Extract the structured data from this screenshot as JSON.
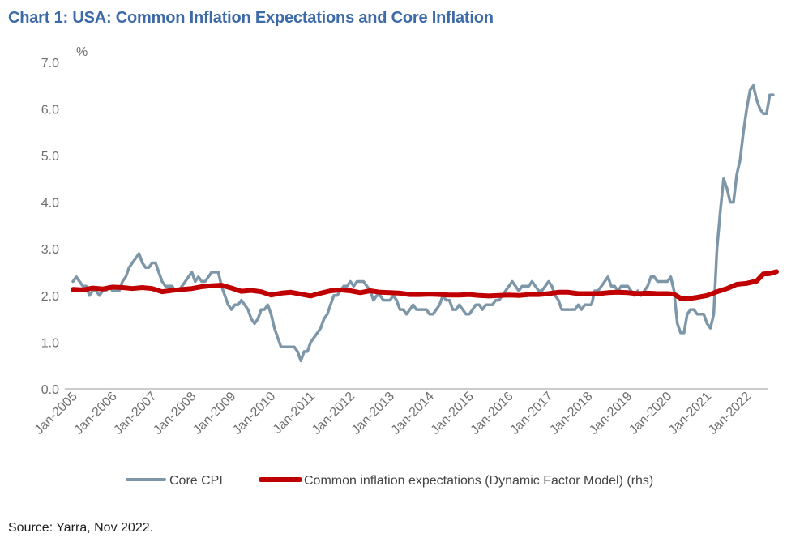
{
  "title": "Chart 1: USA: Common Inflation Expectations and Core Inflation",
  "source": "Source: Yarra, Nov 2022.",
  "colors": {
    "title": "#3d6aa8",
    "core_cpi": "#7d96a8",
    "expectations": "#c00000"
  },
  "chart_data": {
    "type": "line",
    "y_unit": "%",
    "ylim": [
      0,
      7
    ],
    "y_ticks": [
      "0.0",
      "1.0",
      "2.0",
      "3.0",
      "4.0",
      "5.0",
      "6.0",
      "7.0"
    ],
    "x_ticks": [
      "Jan-2005",
      "Jan-2006",
      "Jan-2007",
      "Jan-2008",
      "Jan-2009",
      "Jan-2010",
      "Jan-2011",
      "Jan-2012",
      "Jan-2013",
      "Jan-2014",
      "Jan-2015",
      "Jan-2016",
      "Jan-2017",
      "Jan-2018",
      "Jan-2019",
      "Jan-2020",
      "Jan-2021",
      "Jan-2022"
    ],
    "grid": false,
    "legend_position": "bottom",
    "series": [
      {
        "name": "Core CPI",
        "color": "#7d96a8",
        "points": [
          [
            "2005-01",
            2.3
          ],
          [
            "2005-02",
            2.4
          ],
          [
            "2005-03",
            2.3
          ],
          [
            "2005-04",
            2.2
          ],
          [
            "2005-05",
            2.2
          ],
          [
            "2005-06",
            2.0
          ],
          [
            "2005-07",
            2.1
          ],
          [
            "2005-08",
            2.1
          ],
          [
            "2005-09",
            2.0
          ],
          [
            "2005-10",
            2.1
          ],
          [
            "2005-11",
            2.1
          ],
          [
            "2005-12",
            2.2
          ],
          [
            "2006-01",
            2.1
          ],
          [
            "2006-02",
            2.1
          ],
          [
            "2006-03",
            2.1
          ],
          [
            "2006-04",
            2.3
          ],
          [
            "2006-05",
            2.4
          ],
          [
            "2006-06",
            2.6
          ],
          [
            "2006-07",
            2.7
          ],
          [
            "2006-08",
            2.8
          ],
          [
            "2006-09",
            2.9
          ],
          [
            "2006-10",
            2.7
          ],
          [
            "2006-11",
            2.6
          ],
          [
            "2006-12",
            2.6
          ],
          [
            "2007-01",
            2.7
          ],
          [
            "2007-02",
            2.7
          ],
          [
            "2007-03",
            2.5
          ],
          [
            "2007-04",
            2.3
          ],
          [
            "2007-05",
            2.2
          ],
          [
            "2007-06",
            2.2
          ],
          [
            "2007-07",
            2.2
          ],
          [
            "2007-08",
            2.1
          ],
          [
            "2007-09",
            2.1
          ],
          [
            "2007-10",
            2.2
          ],
          [
            "2007-11",
            2.3
          ],
          [
            "2007-12",
            2.4
          ],
          [
            "2008-01",
            2.5
          ],
          [
            "2008-02",
            2.3
          ],
          [
            "2008-03",
            2.4
          ],
          [
            "2008-04",
            2.3
          ],
          [
            "2008-05",
            2.3
          ],
          [
            "2008-06",
            2.4
          ],
          [
            "2008-07",
            2.5
          ],
          [
            "2008-08",
            2.5
          ],
          [
            "2008-09",
            2.5
          ],
          [
            "2008-10",
            2.2
          ],
          [
            "2008-11",
            2.0
          ],
          [
            "2008-12",
            1.8
          ],
          [
            "2009-01",
            1.7
          ],
          [
            "2009-02",
            1.8
          ],
          [
            "2009-03",
            1.8
          ],
          [
            "2009-04",
            1.9
          ],
          [
            "2009-05",
            1.8
          ],
          [
            "2009-06",
            1.7
          ],
          [
            "2009-07",
            1.5
          ],
          [
            "2009-08",
            1.4
          ],
          [
            "2009-09",
            1.5
          ],
          [
            "2009-10",
            1.7
          ],
          [
            "2009-11",
            1.7
          ],
          [
            "2009-12",
            1.8
          ],
          [
            "2010-01",
            1.6
          ],
          [
            "2010-02",
            1.3
          ],
          [
            "2010-03",
            1.1
          ],
          [
            "2010-04",
            0.9
          ],
          [
            "2010-05",
            0.9
          ],
          [
            "2010-06",
            0.9
          ],
          [
            "2010-07",
            0.9
          ],
          [
            "2010-08",
            0.9
          ],
          [
            "2010-09",
            0.8
          ],
          [
            "2010-10",
            0.6
          ],
          [
            "2010-11",
            0.8
          ],
          [
            "2010-12",
            0.8
          ],
          [
            "2011-01",
            1.0
          ],
          [
            "2011-02",
            1.1
          ],
          [
            "2011-03",
            1.2
          ],
          [
            "2011-04",
            1.3
          ],
          [
            "2011-05",
            1.5
          ],
          [
            "2011-06",
            1.6
          ],
          [
            "2011-07",
            1.8
          ],
          [
            "2011-08",
            2.0
          ],
          [
            "2011-09",
            2.0
          ],
          [
            "2011-10",
            2.1
          ],
          [
            "2011-11",
            2.2
          ],
          [
            "2011-12",
            2.2
          ],
          [
            "2012-01",
            2.3
          ],
          [
            "2012-02",
            2.2
          ],
          [
            "2012-03",
            2.3
          ],
          [
            "2012-04",
            2.3
          ],
          [
            "2012-05",
            2.3
          ],
          [
            "2012-06",
            2.2
          ],
          [
            "2012-07",
            2.1
          ],
          [
            "2012-08",
            1.9
          ],
          [
            "2012-09",
            2.0
          ],
          [
            "2012-10",
            2.0
          ],
          [
            "2012-11",
            1.9
          ],
          [
            "2012-12",
            1.9
          ],
          [
            "2013-01",
            1.9
          ],
          [
            "2013-02",
            2.0
          ],
          [
            "2013-03",
            1.9
          ],
          [
            "2013-04",
            1.7
          ],
          [
            "2013-05",
            1.7
          ],
          [
            "2013-06",
            1.6
          ],
          [
            "2013-07",
            1.7
          ],
          [
            "2013-08",
            1.8
          ],
          [
            "2013-09",
            1.7
          ],
          [
            "2013-10",
            1.7
          ],
          [
            "2013-11",
            1.7
          ],
          [
            "2013-12",
            1.7
          ],
          [
            "2014-01",
            1.6
          ],
          [
            "2014-02",
            1.6
          ],
          [
            "2014-03",
            1.7
          ],
          [
            "2014-04",
            1.8
          ],
          [
            "2014-05",
            2.0
          ],
          [
            "2014-06",
            1.9
          ],
          [
            "2014-07",
            1.9
          ],
          [
            "2014-08",
            1.7
          ],
          [
            "2014-09",
            1.7
          ],
          [
            "2014-10",
            1.8
          ],
          [
            "2014-11",
            1.7
          ],
          [
            "2014-12",
            1.6
          ],
          [
            "2015-01",
            1.6
          ],
          [
            "2015-02",
            1.7
          ],
          [
            "2015-03",
            1.8
          ],
          [
            "2015-04",
            1.8
          ],
          [
            "2015-05",
            1.7
          ],
          [
            "2015-06",
            1.8
          ],
          [
            "2015-07",
            1.8
          ],
          [
            "2015-08",
            1.8
          ],
          [
            "2015-09",
            1.9
          ],
          [
            "2015-10",
            1.9
          ],
          [
            "2015-11",
            2.0
          ],
          [
            "2015-12",
            2.1
          ],
          [
            "2016-01",
            2.2
          ],
          [
            "2016-02",
            2.3
          ],
          [
            "2016-03",
            2.2
          ],
          [
            "2016-04",
            2.1
          ],
          [
            "2016-05",
            2.2
          ],
          [
            "2016-06",
            2.2
          ],
          [
            "2016-07",
            2.2
          ],
          [
            "2016-08",
            2.3
          ],
          [
            "2016-09",
            2.2
          ],
          [
            "2016-10",
            2.1
          ],
          [
            "2016-11",
            2.1
          ],
          [
            "2016-12",
            2.2
          ],
          [
            "2017-01",
            2.3
          ],
          [
            "2017-02",
            2.2
          ],
          [
            "2017-03",
            2.0
          ],
          [
            "2017-04",
            1.9
          ],
          [
            "2017-05",
            1.7
          ],
          [
            "2017-06",
            1.7
          ],
          [
            "2017-07",
            1.7
          ],
          [
            "2017-08",
            1.7
          ],
          [
            "2017-09",
            1.7
          ],
          [
            "2017-10",
            1.8
          ],
          [
            "2017-11",
            1.7
          ],
          [
            "2017-12",
            1.8
          ],
          [
            "2018-01",
            1.8
          ],
          [
            "2018-02",
            1.8
          ],
          [
            "2018-03",
            2.1
          ],
          [
            "2018-04",
            2.1
          ],
          [
            "2018-05",
            2.2
          ],
          [
            "2018-06",
            2.3
          ],
          [
            "2018-07",
            2.4
          ],
          [
            "2018-08",
            2.2
          ],
          [
            "2018-09",
            2.2
          ],
          [
            "2018-10",
            2.1
          ],
          [
            "2018-11",
            2.2
          ],
          [
            "2018-12",
            2.2
          ],
          [
            "2019-01",
            2.2
          ],
          [
            "2019-02",
            2.1
          ],
          [
            "2019-03",
            2.0
          ],
          [
            "2019-04",
            2.1
          ],
          [
            "2019-05",
            2.0
          ],
          [
            "2019-06",
            2.1
          ],
          [
            "2019-07",
            2.2
          ],
          [
            "2019-08",
            2.4
          ],
          [
            "2019-09",
            2.4
          ],
          [
            "2019-10",
            2.3
          ],
          [
            "2019-11",
            2.3
          ],
          [
            "2019-12",
            2.3
          ],
          [
            "2020-01",
            2.3
          ],
          [
            "2020-02",
            2.4
          ],
          [
            "2020-03",
            2.1
          ],
          [
            "2020-04",
            1.4
          ],
          [
            "2020-05",
            1.2
          ],
          [
            "2020-06",
            1.2
          ],
          [
            "2020-07",
            1.6
          ],
          [
            "2020-08",
            1.7
          ],
          [
            "2020-09",
            1.7
          ],
          [
            "2020-10",
            1.6
          ],
          [
            "2020-11",
            1.6
          ],
          [
            "2020-12",
            1.6
          ],
          [
            "2021-01",
            1.4
          ],
          [
            "2021-02",
            1.3
          ],
          [
            "2021-03",
            1.6
          ],
          [
            "2021-04",
            3.0
          ],
          [
            "2021-05",
            3.8
          ],
          [
            "2021-06",
            4.5
          ],
          [
            "2021-07",
            4.3
          ],
          [
            "2021-08",
            4.0
          ],
          [
            "2021-09",
            4.0
          ],
          [
            "2021-10",
            4.6
          ],
          [
            "2021-11",
            4.9
          ],
          [
            "2021-12",
            5.5
          ],
          [
            "2022-01",
            6.0
          ],
          [
            "2022-02",
            6.4
          ],
          [
            "2022-03",
            6.5
          ],
          [
            "2022-04",
            6.2
          ],
          [
            "2022-05",
            6.0
          ],
          [
            "2022-06",
            5.9
          ],
          [
            "2022-07",
            5.9
          ],
          [
            "2022-08",
            6.3
          ],
          [
            "2022-09",
            6.3
          ]
        ]
      },
      {
        "name": "Common inflation expectations (Dynamic Factor Model) (rhs)",
        "color": "#c00000",
        "points": [
          [
            "2005-01",
            2.13
          ],
          [
            "2005-04",
            2.12
          ],
          [
            "2005-07",
            2.16
          ],
          [
            "2005-10",
            2.14
          ],
          [
            "2006-01",
            2.18
          ],
          [
            "2006-04",
            2.17
          ],
          [
            "2006-07",
            2.15
          ],
          [
            "2006-10",
            2.17
          ],
          [
            "2007-01",
            2.15
          ],
          [
            "2007-04",
            2.08
          ],
          [
            "2007-07",
            2.11
          ],
          [
            "2007-10",
            2.13
          ],
          [
            "2008-01",
            2.15
          ],
          [
            "2008-04",
            2.19
          ],
          [
            "2008-07",
            2.21
          ],
          [
            "2008-10",
            2.22
          ],
          [
            "2009-01",
            2.16
          ],
          [
            "2009-04",
            2.09
          ],
          [
            "2009-07",
            2.11
          ],
          [
            "2009-10",
            2.08
          ],
          [
            "2010-01",
            2.01
          ],
          [
            "2010-04",
            2.05
          ],
          [
            "2010-07",
            2.07
          ],
          [
            "2010-10",
            2.03
          ],
          [
            "2011-01",
            1.99
          ],
          [
            "2011-04",
            2.05
          ],
          [
            "2011-07",
            2.1
          ],
          [
            "2011-10",
            2.12
          ],
          [
            "2012-01",
            2.1
          ],
          [
            "2012-04",
            2.06
          ],
          [
            "2012-07",
            2.1
          ],
          [
            "2012-10",
            2.07
          ],
          [
            "2013-01",
            2.06
          ],
          [
            "2013-04",
            2.05
          ],
          [
            "2013-07",
            2.02
          ],
          [
            "2013-10",
            2.02
          ],
          [
            "2014-01",
            2.03
          ],
          [
            "2014-04",
            2.02
          ],
          [
            "2014-07",
            2.01
          ],
          [
            "2014-10",
            2.01
          ],
          [
            "2015-01",
            2.02
          ],
          [
            "2015-04",
            2.0
          ],
          [
            "2015-07",
            1.99
          ],
          [
            "2015-10",
            2.0
          ],
          [
            "2016-01",
            2.01
          ],
          [
            "2016-04",
            2.0
          ],
          [
            "2016-07",
            2.02
          ],
          [
            "2016-10",
            2.02
          ],
          [
            "2017-01",
            2.04
          ],
          [
            "2017-04",
            2.07
          ],
          [
            "2017-07",
            2.07
          ],
          [
            "2017-10",
            2.04
          ],
          [
            "2018-01",
            2.04
          ],
          [
            "2018-04",
            2.04
          ],
          [
            "2018-07",
            2.06
          ],
          [
            "2018-10",
            2.07
          ],
          [
            "2019-01",
            2.06
          ],
          [
            "2019-04",
            2.04
          ],
          [
            "2019-07",
            2.05
          ],
          [
            "2019-10",
            2.04
          ],
          [
            "2020-01",
            2.04
          ],
          [
            "2020-03",
            2.03
          ],
          [
            "2020-05",
            1.94
          ],
          [
            "2020-07",
            1.93
          ],
          [
            "2020-10",
            1.96
          ],
          [
            "2021-01",
            2.0
          ],
          [
            "2021-04",
            2.08
          ],
          [
            "2021-07",
            2.15
          ],
          [
            "2021-10",
            2.24
          ],
          [
            "2022-01",
            2.26
          ],
          [
            "2022-04",
            2.31
          ],
          [
            "2022-06",
            2.46
          ],
          [
            "2022-08",
            2.47
          ],
          [
            "2022-10",
            2.51
          ]
        ]
      }
    ]
  }
}
